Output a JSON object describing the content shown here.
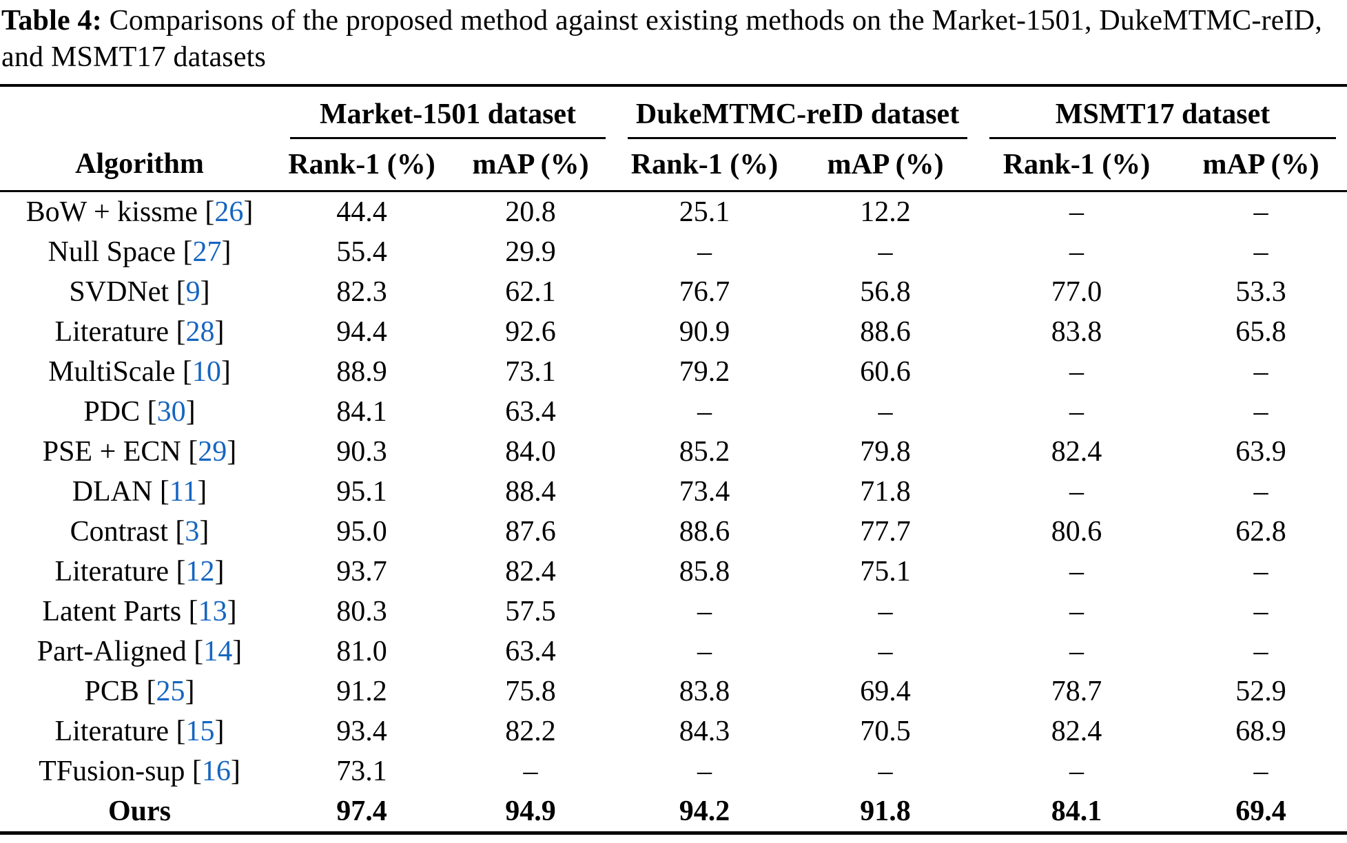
{
  "caption": {
    "label": "Table 4:",
    "text": " Comparisons of the proposed method against existing methods on the Market-1501, DukeMTMC-reID, and MSMT17 datasets"
  },
  "table": {
    "algorithm_header": "Algorithm",
    "groups": [
      {
        "label": "Market-1501 dataset"
      },
      {
        "label": "DukeMTMC-reID dataset"
      },
      {
        "label": "MSMT17 dataset"
      }
    ],
    "subheaders": [
      "Rank-1 (%)",
      "mAP (%)",
      "Rank-1 (%)",
      "mAP (%)",
      "Rank-1 (%)",
      "mAP (%)"
    ],
    "rows": [
      {
        "name": "BoW + kissme",
        "ref": "26",
        "bold": false,
        "values": [
          "44.4",
          "20.8",
          "25.1",
          "12.2",
          "–",
          "–"
        ]
      },
      {
        "name": "Null Space",
        "ref": "27",
        "bold": false,
        "values": [
          "55.4",
          "29.9",
          "–",
          "–",
          "–",
          "–"
        ]
      },
      {
        "name": "SVDNet",
        "ref": "9",
        "bold": false,
        "values": [
          "82.3",
          "62.1",
          "76.7",
          "56.8",
          "77.0",
          "53.3"
        ]
      },
      {
        "name": "Literature",
        "ref": "28",
        "bold": false,
        "values": [
          "94.4",
          "92.6",
          "90.9",
          "88.6",
          "83.8",
          "65.8"
        ]
      },
      {
        "name": "MultiScale",
        "ref": "10",
        "bold": false,
        "values": [
          "88.9",
          "73.1",
          "79.2",
          "60.6",
          "–",
          "–"
        ]
      },
      {
        "name": "PDC",
        "ref": "30",
        "bold": false,
        "values": [
          "84.1",
          "63.4",
          "–",
          "–",
          "–",
          "–"
        ]
      },
      {
        "name": "PSE + ECN",
        "ref": "29",
        "bold": false,
        "values": [
          "90.3",
          "84.0",
          "85.2",
          "79.8",
          "82.4",
          "63.9"
        ]
      },
      {
        "name": "DLAN",
        "ref": "11",
        "bold": false,
        "values": [
          "95.1",
          "88.4",
          "73.4",
          "71.8",
          "–",
          "–"
        ]
      },
      {
        "name": "Contrast",
        "ref": "3",
        "bold": false,
        "values": [
          "95.0",
          "87.6",
          "88.6",
          "77.7",
          "80.6",
          "62.8"
        ]
      },
      {
        "name": "Literature",
        "ref": "12",
        "bold": false,
        "values": [
          "93.7",
          "82.4",
          "85.8",
          "75.1",
          "–",
          "–"
        ]
      },
      {
        "name": "Latent Parts",
        "ref": "13",
        "bold": false,
        "values": [
          "80.3",
          "57.5",
          "–",
          "–",
          "–",
          "–"
        ]
      },
      {
        "name": "Part-Aligned",
        "ref": "14",
        "bold": false,
        "values": [
          "81.0",
          "63.4",
          "–",
          "–",
          "–",
          "–"
        ]
      },
      {
        "name": "PCB",
        "ref": "25",
        "bold": false,
        "values": [
          "91.2",
          "75.8",
          "83.8",
          "69.4",
          "78.7",
          "52.9"
        ]
      },
      {
        "name": "Literature",
        "ref": "15",
        "bold": false,
        "values": [
          "93.4",
          "82.2",
          "84.3",
          "70.5",
          "82.4",
          "68.9"
        ]
      },
      {
        "name": "TFusion-sup",
        "ref": "16",
        "bold": false,
        "values": [
          "73.1",
          "–",
          "–",
          "–",
          "–",
          "–"
        ]
      },
      {
        "name": "Ours",
        "ref": null,
        "bold": true,
        "values": [
          "97.4",
          "94.9",
          "94.2",
          "91.8",
          "84.1",
          "69.4"
        ]
      }
    ]
  },
  "colors": {
    "citation": "#1565c0",
    "text": "#000000",
    "background": "#ffffff"
  }
}
